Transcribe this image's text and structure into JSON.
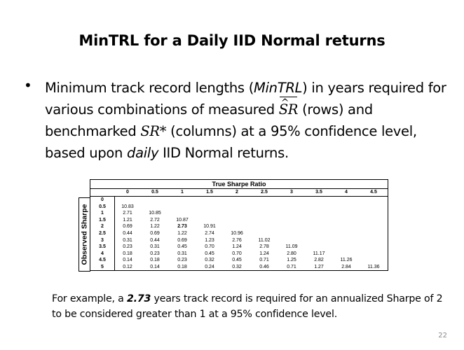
{
  "slide": {
    "title": "MinTRL for a Daily IID Normal returns",
    "bullet": {
      "symbol": "•",
      "part1": "Minimum track record lengths (",
      "minTRL": "MinTRL",
      "part2": ") in years required for various combinations of measured ",
      "sr_measured": "SR",
      "part3": " (rows) and benchmarked ",
      "sr_bench": "SR*",
      "part4": " (columns) at a 95% confidence level, based upon ",
      "daily": "daily",
      "part5": " IID Normal returns."
    },
    "example": {
      "part1": "For example, a ",
      "value": "2.73",
      "part2": " years track record is required for an annualized Sharpe of 2 to be considered greater than 1 at a 95% confidence level."
    },
    "page_number": "22"
  },
  "table": {
    "header": "True Sharpe Ratio",
    "row_axis_label": "Observed Sharpe",
    "columns": [
      "0",
      "0.5",
      "1",
      "1.5",
      "2",
      "2.5",
      "3",
      "3.5",
      "4",
      "4.5"
    ],
    "rows": [
      {
        "label": "0",
        "values": []
      },
      {
        "label": "0.5",
        "values": [
          "10.83"
        ]
      },
      {
        "label": "1",
        "values": [
          "2.71",
          "10.85"
        ]
      },
      {
        "label": "1.5",
        "values": [
          "1.21",
          "2.72",
          "10.87"
        ]
      },
      {
        "label": "2",
        "values": [
          "0.69",
          "1.22",
          "2.73",
          "10.91"
        ]
      },
      {
        "label": "2.5",
        "values": [
          "0.44",
          "0.69",
          "1.22",
          "2.74",
          "10.96"
        ]
      },
      {
        "label": "3",
        "values": [
          "0.31",
          "0.44",
          "0.69",
          "1.23",
          "2.76",
          "11.02"
        ]
      },
      {
        "label": "3.5",
        "values": [
          "0.23",
          "0.31",
          "0.45",
          "0.70",
          "1.24",
          "2.78",
          "11.09"
        ]
      },
      {
        "label": "4",
        "values": [
          "0.18",
          "0.23",
          "0.31",
          "0.45",
          "0.70",
          "1.24",
          "2.80",
          "11.17"
        ]
      },
      {
        "label": "4.5",
        "values": [
          "0.14",
          "0.18",
          "0.23",
          "0.32",
          "0.45",
          "0.71",
          "1.25",
          "2.82",
          "11.26"
        ]
      },
      {
        "label": "5",
        "values": [
          "0.12",
          "0.14",
          "0.18",
          "0.24",
          "0.32",
          "0.46",
          "0.71",
          "1.27",
          "2.84",
          "11.36"
        ]
      }
    ],
    "highlight": {
      "row": 4,
      "col": 2
    }
  }
}
